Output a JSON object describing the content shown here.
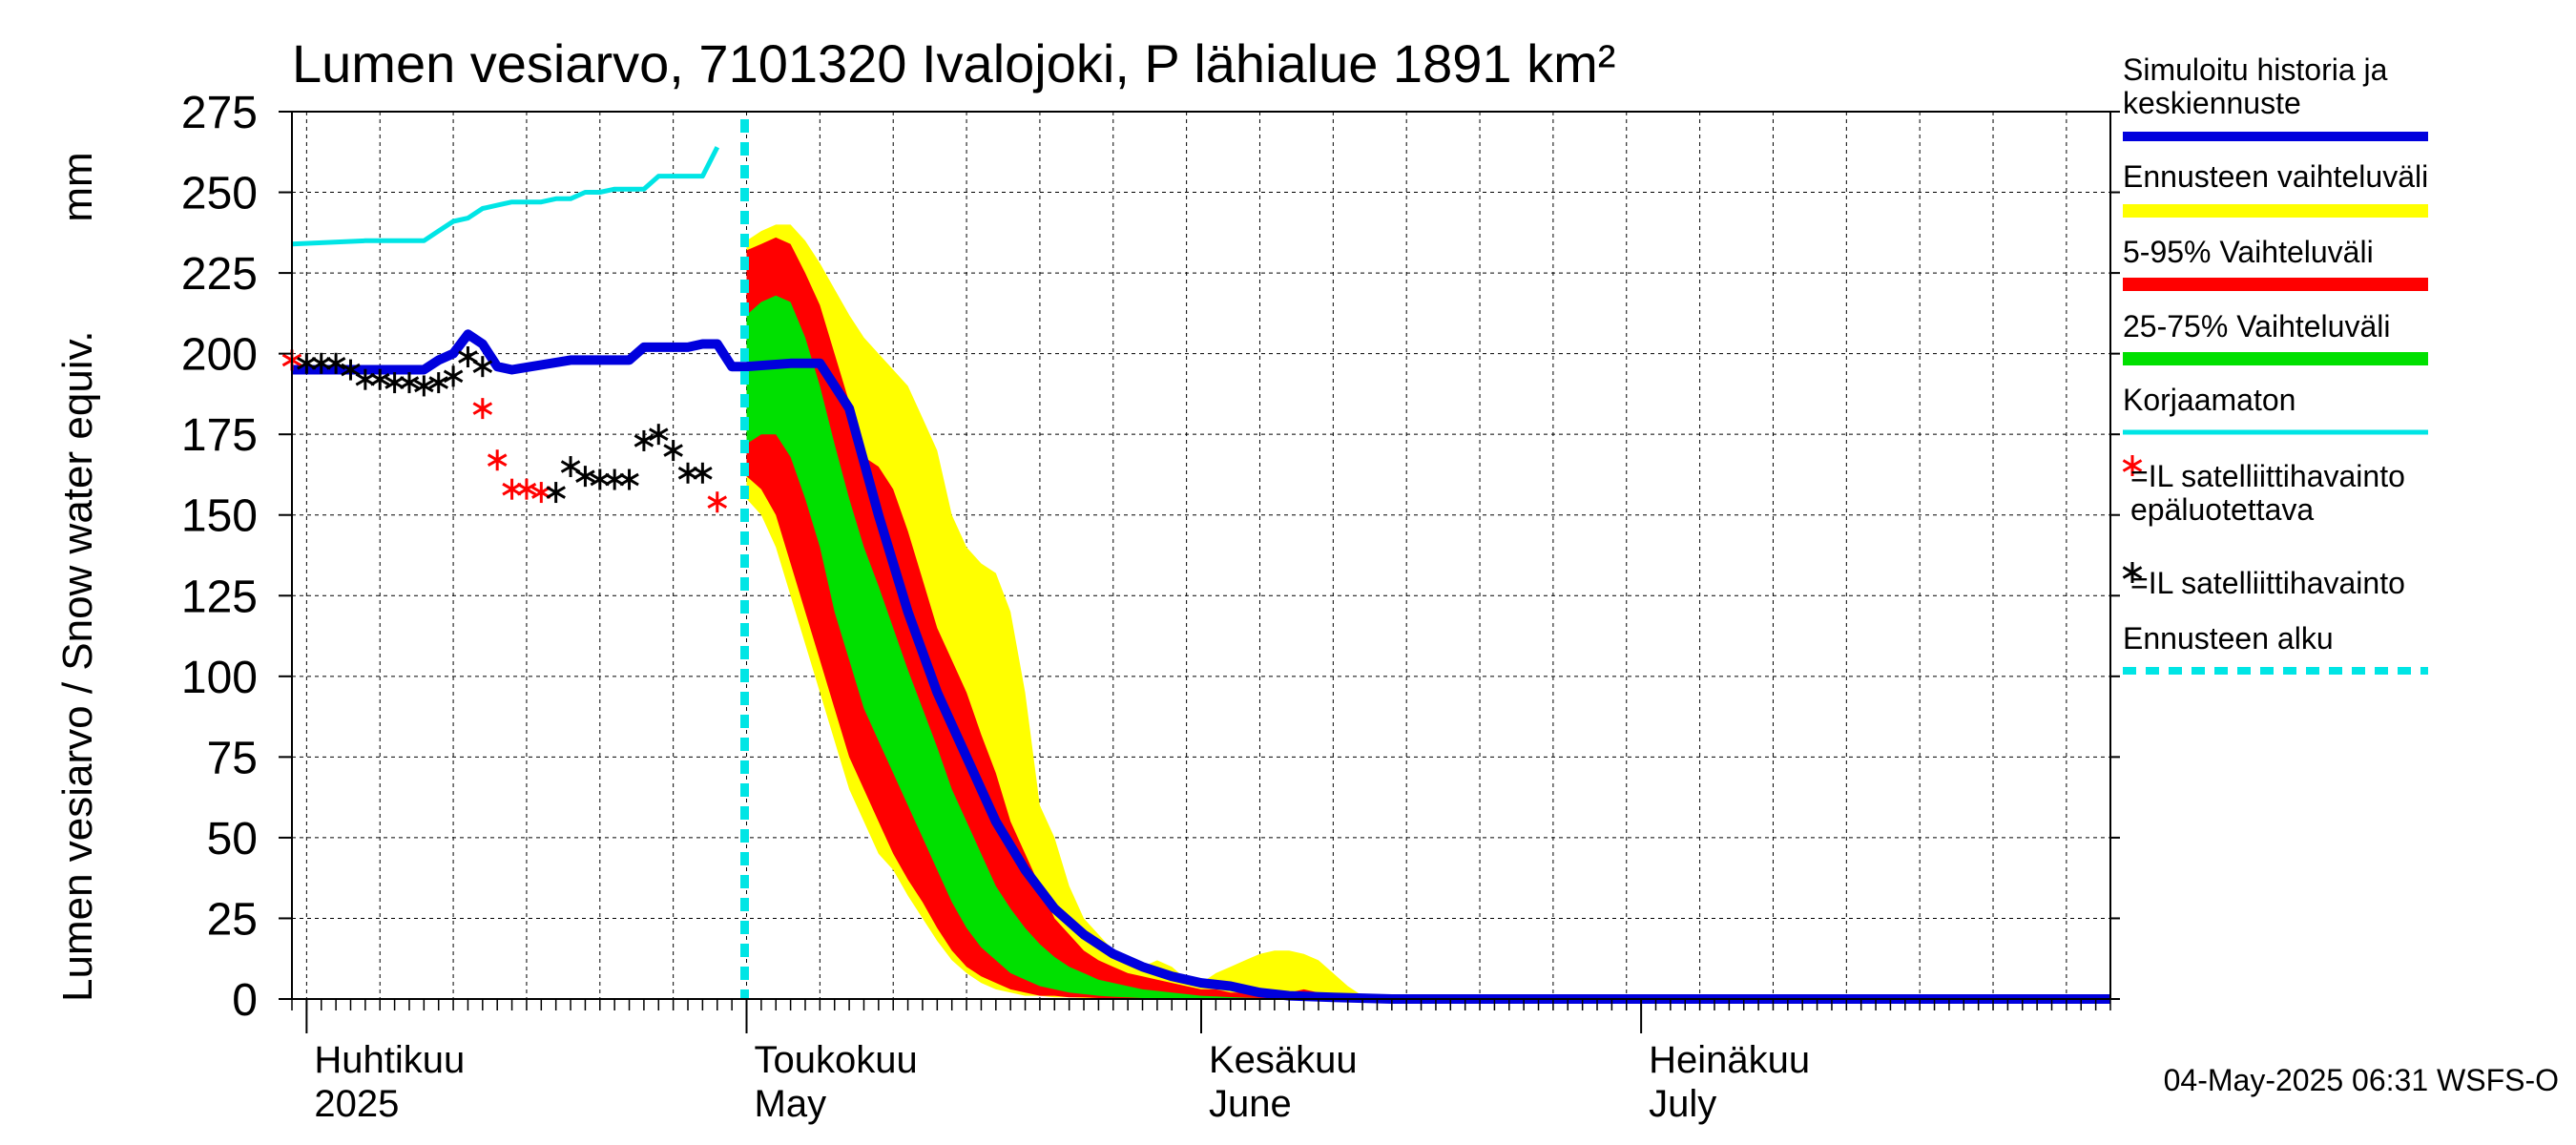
{
  "chart_data": {
    "type": "area",
    "title": "Lumen vesiarvo, 7101320 Ivalojoki, P lähialue 1891 km²",
    "ylabel": "Lumen vesiarvo / Snow water equiv.",
    "yunit": "mm",
    "ylim": [
      0,
      275
    ],
    "yticks": [
      0,
      25,
      50,
      75,
      100,
      125,
      150,
      175,
      200,
      225,
      250,
      275
    ],
    "xlim": [
      "2025-03-31",
      "2025-08-02"
    ],
    "grid": true,
    "legend_position": "right",
    "forecast_start": "2025-05-01",
    "month_labels": [
      {
        "date": "2025-04-01",
        "line1": "Huhtikuu",
        "line2": "2025"
      },
      {
        "date": "2025-05-01",
        "line1": "Toukokuu",
        "line2": "May"
      },
      {
        "date": "2025-06-01",
        "line1": "Kesäkuu",
        "line2": "June"
      },
      {
        "date": "2025-07-01",
        "line1": "Heinäkuu",
        "line2": "July"
      }
    ],
    "legend": [
      {
        "label": "Simuloitu historia ja keskiennuste",
        "color": "#0000dd",
        "kind": "line"
      },
      {
        "label": "Ennusteen vaihteluväli",
        "color": "#ffff00",
        "kind": "band"
      },
      {
        "label": "5-95% Vaihteluväli",
        "color": "#ff0000",
        "kind": "band"
      },
      {
        "label": "25-75% Vaihteluväli",
        "color": "#00e000",
        "kind": "band"
      },
      {
        "label": "Korjaamaton",
        "color": "#00e5e5",
        "kind": "line"
      },
      {
        "label": "=IL satelliittihavainto epäluotettava",
        "color": "#ff0000",
        "kind": "star"
      },
      {
        "label": "=IL satelliittihavainto",
        "color": "#000000",
        "kind": "star"
      },
      {
        "label": "Ennusteen alku",
        "color": "#00e5e5",
        "kind": "dashed"
      }
    ],
    "series": [
      {
        "name": "Simuloitu historia ja keskiennuste",
        "type": "line",
        "color": "#0000dd",
        "x": [
          "2025-03-31",
          "2025-04-01",
          "2025-04-05",
          "2025-04-09",
          "2025-04-10",
          "2025-04-11",
          "2025-04-12",
          "2025-04-13",
          "2025-04-14",
          "2025-04-15",
          "2025-04-19",
          "2025-04-20",
          "2025-04-21",
          "2025-04-22",
          "2025-04-23",
          "2025-04-24",
          "2025-04-25",
          "2025-04-26",
          "2025-04-27",
          "2025-04-28",
          "2025-04-29",
          "2025-04-30",
          "2025-05-01",
          "2025-05-04",
          "2025-05-06",
          "2025-05-08",
          "2025-05-10",
          "2025-05-12",
          "2025-05-14",
          "2025-05-16",
          "2025-05-18",
          "2025-05-20",
          "2025-05-22",
          "2025-05-24",
          "2025-05-26",
          "2025-05-28",
          "2025-05-30",
          "2025-06-01",
          "2025-06-03",
          "2025-06-05",
          "2025-06-07",
          "2025-06-10",
          "2025-06-14",
          "2025-08-02"
        ],
        "y": [
          195,
          195,
          195,
          195,
          198,
          200,
          206,
          203,
          196,
          195,
          198,
          198,
          198,
          198,
          198,
          202,
          202,
          202,
          202,
          203,
          203,
          196,
          196,
          197,
          197,
          183,
          150,
          120,
          95,
          75,
          55,
          40,
          28,
          20,
          14,
          10,
          7,
          5,
          4,
          2,
          1,
          0.5,
          0,
          0
        ]
      },
      {
        "name": "Korjaamaton",
        "type": "line",
        "color": "#00e5e5",
        "x": [
          "2025-03-31",
          "2025-04-05",
          "2025-04-09",
          "2025-04-10",
          "2025-04-11",
          "2025-04-12",
          "2025-04-13",
          "2025-04-14",
          "2025-04-15",
          "2025-04-16",
          "2025-04-17",
          "2025-04-18",
          "2025-04-19",
          "2025-04-20",
          "2025-04-21",
          "2025-04-22",
          "2025-04-23",
          "2025-04-24",
          "2025-04-25",
          "2025-04-26",
          "2025-04-27",
          "2025-04-28",
          "2025-04-29"
        ],
        "y": [
          234,
          235,
          235,
          238,
          241,
          242,
          245,
          246,
          247,
          247,
          247,
          248,
          248,
          250,
          250,
          251,
          251,
          251,
          255,
          255,
          255,
          255,
          264
        ]
      },
      {
        "name": "Ennusteen vaihteluväli",
        "type": "band",
        "color": "#ffff00",
        "x": [
          "2025-05-01",
          "2025-05-02",
          "2025-05-03",
          "2025-05-04",
          "2025-05-05",
          "2025-05-06",
          "2025-05-07",
          "2025-05-08",
          "2025-05-09",
          "2025-05-10",
          "2025-05-11",
          "2025-05-12",
          "2025-05-13",
          "2025-05-14",
          "2025-05-15",
          "2025-05-16",
          "2025-05-17",
          "2025-05-18",
          "2025-05-19",
          "2025-05-20",
          "2025-05-21",
          "2025-05-22",
          "2025-05-23",
          "2025-05-24",
          "2025-05-25",
          "2025-05-26",
          "2025-05-27",
          "2025-05-28",
          "2025-05-29",
          "2025-05-30",
          "2025-05-31",
          "2025-06-01",
          "2025-06-02",
          "2025-06-03",
          "2025-06-04",
          "2025-06-05",
          "2025-06-06",
          "2025-06-07",
          "2025-06-08",
          "2025-06-09",
          "2025-06-10",
          "2025-06-11",
          "2025-06-12",
          "2025-06-13",
          "2025-06-14",
          "2025-06-15"
        ],
        "lower": [
          155,
          150,
          140,
          125,
          110,
          95,
          80,
          65,
          55,
          45,
          40,
          32,
          25,
          18,
          12,
          8,
          5,
          3,
          2,
          1,
          1,
          0.5,
          0.5,
          0.3,
          0.2,
          0.1,
          0,
          0,
          0,
          0,
          0,
          0,
          0,
          0,
          0,
          0,
          0,
          0,
          0,
          0,
          0,
          0,
          0,
          0,
          0,
          0
        ],
        "upper": [
          235,
          238,
          240,
          240,
          235,
          228,
          220,
          212,
          205,
          200,
          195,
          190,
          180,
          170,
          150,
          140,
          135,
          132,
          120,
          95,
          60,
          50,
          35,
          25,
          20,
          15,
          12,
          10,
          12,
          10,
          6,
          5,
          8,
          10,
          12,
          14,
          15,
          15,
          14,
          12,
          8,
          4,
          1,
          0,
          0,
          0
        ]
      },
      {
        "name": "5-95% Vaihteluväli",
        "type": "band",
        "color": "#ff0000",
        "x": [
          "2025-05-01",
          "2025-05-02",
          "2025-05-03",
          "2025-05-04",
          "2025-05-05",
          "2025-05-06",
          "2025-05-07",
          "2025-05-08",
          "2025-05-09",
          "2025-05-10",
          "2025-05-11",
          "2025-05-12",
          "2025-05-13",
          "2025-05-14",
          "2025-05-15",
          "2025-05-16",
          "2025-05-17",
          "2025-05-18",
          "2025-05-19",
          "2025-05-20",
          "2025-05-21",
          "2025-05-22",
          "2025-05-23",
          "2025-05-24",
          "2025-05-25",
          "2025-05-26",
          "2025-05-27",
          "2025-05-28",
          "2025-05-29",
          "2025-05-30",
          "2025-05-31",
          "2025-06-01",
          "2025-06-02",
          "2025-06-03",
          "2025-06-04",
          "2025-06-05",
          "2025-06-06",
          "2025-06-07",
          "2025-06-08",
          "2025-06-09",
          "2025-06-10",
          "2025-06-11",
          "2025-06-12"
        ],
        "lower": [
          162,
          158,
          150,
          135,
          120,
          105,
          90,
          75,
          65,
          55,
          45,
          37,
          30,
          22,
          15,
          10,
          7,
          5,
          3,
          2,
          1,
          1,
          0.5,
          0.5,
          0.3,
          0.2,
          0.1,
          0,
          0,
          0,
          0,
          0,
          0,
          0,
          0,
          0,
          0,
          0,
          0,
          0,
          0,
          0,
          0
        ],
        "upper": [
          232,
          234,
          236,
          234,
          225,
          215,
          200,
          185,
          168,
          165,
          158,
          145,
          130,
          115,
          105,
          95,
          82,
          70,
          55,
          45,
          35,
          25,
          20,
          15,
          12,
          10,
          8,
          7,
          6,
          5,
          4,
          3,
          3,
          2,
          2,
          2,
          2,
          2,
          3,
          2,
          1,
          0.5,
          0
        ]
      },
      {
        "name": "25-75% Vaihteluväli",
        "type": "band",
        "color": "#00e000",
        "x": [
          "2025-05-01",
          "2025-05-02",
          "2025-05-03",
          "2025-05-04",
          "2025-05-05",
          "2025-05-06",
          "2025-05-07",
          "2025-05-08",
          "2025-05-09",
          "2025-05-10",
          "2025-05-11",
          "2025-05-12",
          "2025-05-13",
          "2025-05-14",
          "2025-05-15",
          "2025-05-16",
          "2025-05-17",
          "2025-05-18",
          "2025-05-19",
          "2025-05-20",
          "2025-05-21",
          "2025-05-22",
          "2025-05-23",
          "2025-05-24",
          "2025-05-25",
          "2025-05-26",
          "2025-05-27",
          "2025-05-28",
          "2025-05-29",
          "2025-05-30",
          "2025-05-31",
          "2025-06-01",
          "2025-06-02",
          "2025-06-03",
          "2025-06-04",
          "2025-06-05",
          "2025-06-06",
          "2025-06-07",
          "2025-06-08"
        ],
        "lower": [
          172,
          175,
          175,
          168,
          155,
          140,
          120,
          105,
          90,
          80,
          70,
          60,
          50,
          40,
          30,
          22,
          16,
          12,
          8,
          6,
          4,
          3,
          2,
          1.5,
          1,
          0.7,
          0.5,
          0.3,
          0.2,
          0.1,
          0,
          0,
          0,
          0,
          0,
          0,
          0,
          0,
          0
        ],
        "upper": [
          212,
          216,
          218,
          216,
          205,
          190,
          172,
          155,
          140,
          128,
          115,
          102,
          90,
          78,
          65,
          55,
          45,
          35,
          28,
          22,
          17,
          13,
          10,
          8,
          6,
          5,
          4,
          3,
          2.5,
          2,
          1.5,
          1,
          0.8,
          0.6,
          0.4,
          0.3,
          0.2,
          0.1,
          0
        ]
      }
    ],
    "observations": [
      {
        "name": "=IL satelliittihavainto epäluotettava",
        "color": "#ff0000",
        "x": [
          "2025-03-31",
          "2025-04-13",
          "2025-04-14",
          "2025-04-15",
          "2025-04-16",
          "2025-04-17",
          "2025-04-29"
        ],
        "y": [
          198,
          183,
          167,
          158,
          158,
          157,
          154
        ]
      },
      {
        "name": "=IL satelliittihavainto",
        "color": "#000000",
        "x": [
          "2025-04-01",
          "2025-04-02",
          "2025-04-03",
          "2025-04-04",
          "2025-04-05",
          "2025-04-06",
          "2025-04-07",
          "2025-04-08",
          "2025-04-09",
          "2025-04-10",
          "2025-04-11",
          "2025-04-12",
          "2025-04-13",
          "2025-04-18",
          "2025-04-19",
          "2025-04-20",
          "2025-04-21",
          "2025-04-22",
          "2025-04-23",
          "2025-04-24",
          "2025-04-25",
          "2025-04-26",
          "2025-04-27",
          "2025-04-28"
        ],
        "y": [
          197,
          197,
          197,
          195,
          192,
          192,
          191,
          191,
          190,
          191,
          193,
          199,
          196,
          157,
          165,
          162,
          161,
          161,
          161,
          173,
          175,
          170,
          163,
          163
        ]
      }
    ]
  },
  "footer": {
    "timestamp": "04-May-2025 06:31 WSFS-O"
  }
}
